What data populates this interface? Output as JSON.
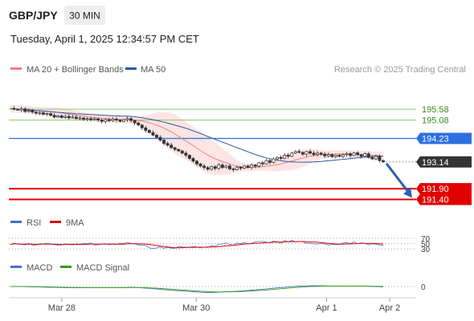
{
  "header": {
    "symbol": "GBP/JPY",
    "timeframe": "30 MIN",
    "datetime": "Tuesday, April 1, 2025 12:34:57 PM CET",
    "credit": "Research © 2025 Trading Central"
  },
  "legend": {
    "main": [
      {
        "label": "MA 20 + Bollinger Bands",
        "color": "#f08080"
      },
      {
        "label": "MA 50",
        "color": "#2d5aa8"
      }
    ],
    "rsi": [
      {
        "label": "RSI",
        "color": "#4472c4"
      },
      {
        "label": "9MA",
        "color": "#e00000"
      }
    ],
    "macd": [
      {
        "label": "MACD",
        "color": "#4472c4"
      },
      {
        "label": "MACD Signal",
        "color": "#3a9a1a"
      }
    ]
  },
  "chart_data": {
    "type": "candlestick",
    "y_range": [
      190.9,
      197.0
    ],
    "last_price": 193.14,
    "x_ticks": [
      "Mar 28",
      "Mar 30",
      "Apr 1",
      "Apr 2"
    ],
    "levels": [
      {
        "value": 195.58,
        "label": "195.58",
        "kind": "resistance-green",
        "color": "#8fc56b",
        "text_color": "#3a8a1a"
      },
      {
        "value": 195.08,
        "label": "195.08",
        "kind": "resistance-green",
        "color": "#8fc56b",
        "text_color": "#3a8a1a"
      },
      {
        "value": 194.23,
        "label": "194.23",
        "kind": "pivot",
        "color": "#2d6fe0",
        "text_color": "#ffffff"
      },
      {
        "value": 193.14,
        "label": "193.14",
        "kind": "last",
        "color": "#333333",
        "text_color": "#ffffff"
      },
      {
        "value": 191.9,
        "label": "191.90",
        "kind": "support",
        "color": "#e00000",
        "text_color": "#ffffff"
      },
      {
        "value": 191.4,
        "label": "191.40",
        "kind": "support",
        "color": "#e00000",
        "text_color": "#ffffff"
      }
    ],
    "price_path": [
      195.62,
      195.58,
      195.55,
      195.6,
      195.48,
      195.52,
      195.45,
      195.4,
      195.42,
      195.35,
      195.38,
      195.3,
      195.22,
      195.28,
      195.2,
      195.25,
      195.18,
      195.22,
      195.15,
      195.18,
      195.12,
      195.15,
      195.1,
      195.14,
      195.08,
      195.02,
      195.1,
      195.05,
      195.12,
      195.08,
      195.02,
      195.1,
      195.15,
      195.06,
      194.95,
      194.85,
      194.72,
      194.6,
      194.5,
      194.38,
      194.28,
      194.15,
      194.0,
      193.92,
      193.8,
      193.72,
      193.65,
      193.55,
      193.45,
      193.3,
      193.18,
      193.05,
      192.95,
      192.88,
      192.8,
      192.92,
      192.84,
      193.0,
      192.88,
      192.95,
      192.82,
      192.78,
      192.9,
      192.85,
      192.95,
      192.88,
      193.0,
      192.94,
      193.1,
      193.05,
      193.2,
      193.12,
      193.28,
      193.35,
      193.3,
      193.45,
      193.4,
      193.55,
      193.62,
      193.58,
      193.5,
      193.62,
      193.55,
      193.48,
      193.55,
      193.5,
      193.42,
      193.48,
      193.38,
      193.45,
      193.4,
      193.48,
      193.52,
      193.44,
      193.56,
      193.48,
      193.4,
      193.52,
      193.35,
      193.28,
      193.4,
      193.2,
      193.14
    ],
    "forecast_arrow": {
      "from": 193.14,
      "to": 191.4
    },
    "rsi": {
      "range": [
        0,
        100
      ],
      "levels": [
        70,
        50,
        30
      ],
      "level_labels": [
        "70",
        "50",
        "30"
      ]
    },
    "macd": {
      "zero_label": "0"
    }
  }
}
